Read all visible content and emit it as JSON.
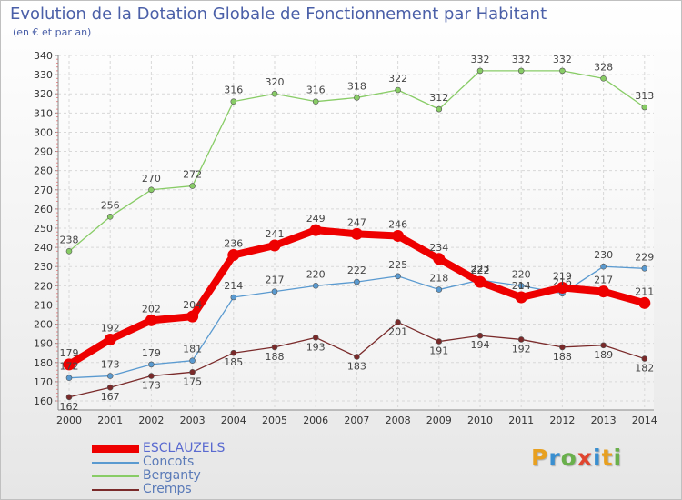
{
  "title": "Evolution de la Dotation Globale de Fonctionnement par Habitant",
  "subtitle": "(en € et par an)",
  "logo": {
    "letters": [
      "P",
      "r",
      "o",
      "x",
      "i",
      "t",
      "i"
    ],
    "colors": [
      "#e8a020",
      "#3a8fd0",
      "#6ab04c",
      "#e0452f",
      "#3a8fd0",
      "#e8a020",
      "#6ab04c"
    ]
  },
  "chart_data": {
    "type": "line",
    "title": "Evolution de la Dotation Globale de Fonctionnement par Habitant",
    "subtitle": "(en € et par an)",
    "xlabel": "",
    "ylabel": "",
    "x": [
      "2000",
      "2001",
      "2002",
      "2003",
      "2004",
      "2005",
      "2006",
      "2007",
      "2008",
      "2009",
      "2010",
      "2011",
      "2012",
      "2013",
      "2014"
    ],
    "ylim": [
      160,
      340
    ],
    "yticks": [
      160,
      170,
      180,
      190,
      200,
      210,
      220,
      230,
      240,
      250,
      260,
      270,
      280,
      290,
      300,
      310,
      320,
      330,
      340
    ],
    "legend_position": "bottom-left",
    "series": [
      {
        "name": "Cremps",
        "color": "#7a2a2a",
        "values": [
          162,
          167,
          173,
          175,
          185,
          188,
          193,
          183,
          201,
          191,
          194,
          192,
          188,
          189,
          182
        ]
      },
      {
        "name": "Berganty",
        "color": "#88cc66",
        "values": [
          238,
          256,
          270,
          272,
          316,
          320,
          316,
          318,
          322,
          312,
          332,
          332,
          332,
          328,
          313
        ]
      },
      {
        "name": "Concots",
        "color": "#5a9ad0",
        "values": [
          172,
          173,
          179,
          181,
          214,
          217,
          220,
          222,
          225,
          218,
          223,
          220,
          216,
          230,
          229
        ]
      },
      {
        "name": "ESCLAUZELS",
        "color": "#ee0000",
        "values": [
          179,
          192,
          202,
          204,
          236,
          241,
          249,
          247,
          246,
          234,
          222,
          214,
          219,
          217,
          211
        ]
      }
    ]
  }
}
